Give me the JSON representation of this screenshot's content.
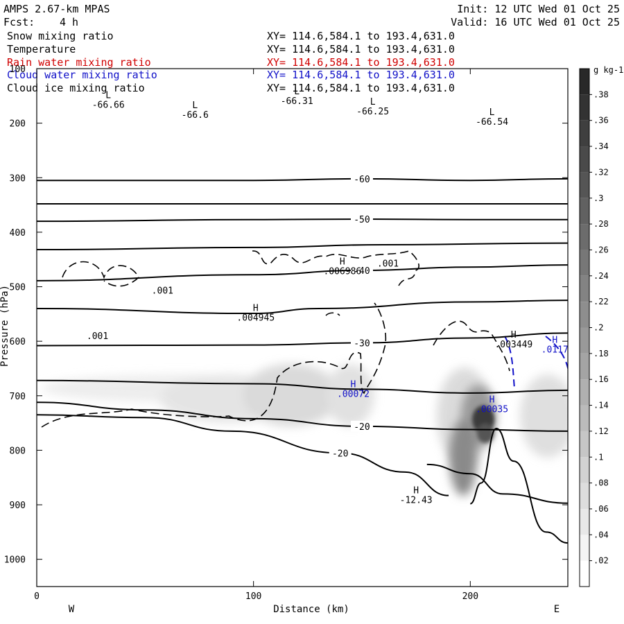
{
  "header": {
    "model": "AMPS 2.67-km MPAS",
    "fcst_label": "Fcst:",
    "fcst_value": "4 h",
    "init": "Init: 12 UTC Wed 01 Oct 25",
    "valid": "Valid: 16 UTC Wed 01 Oct 25"
  },
  "layers": [
    {
      "name": "Snow mixing ratio",
      "xy": "XY= 114.6,584.1 to 193.4,631.0",
      "color": "#000000"
    },
    {
      "name": "Temperature",
      "xy": "XY= 114.6,584.1 to 193.4,631.0",
      "color": "#000000"
    },
    {
      "name": "Rain water mixing ratio",
      "xy": "XY= 114.6,584.1 to 193.4,631.0",
      "color": "#d00000"
    },
    {
      "name": "Cloud water mixing ratio",
      "xy": "XY= 114.6,584.1 to 193.4,631.0",
      "color": "#1010c8"
    },
    {
      "name": "Cloud ice mixing ratio",
      "xy": "XY= 114.6,584.1 to 193.4,631.0",
      "color": "#000000"
    }
  ],
  "chart_data": {
    "type": "contour cross-section",
    "xlabel": "Distance (km)",
    "ylabel": "Pressure (hPa)",
    "xlim": [
      0,
      245
    ],
    "ylim": [
      1050,
      100
    ],
    "y_scale": "linear",
    "x_ticks": [
      0,
      100,
      200
    ],
    "y_ticks": [
      100,
      200,
      300,
      400,
      500,
      600,
      700,
      800,
      900,
      1000
    ],
    "x_ends": {
      "left": "W",
      "right": "E"
    },
    "colorbar": {
      "units": "g kg-1",
      "levels": [
        0.02,
        0.04,
        0.06,
        0.08,
        0.1,
        0.12,
        0.14,
        0.16,
        0.18,
        0.2,
        0.22,
        0.24,
        0.26,
        0.28,
        0.3,
        0.32,
        0.34,
        0.36,
        0.38
      ],
      "tick_labels": [
        ".02",
        ".04",
        ".06",
        ".08",
        ".1",
        ".12",
        ".14",
        ".16",
        ".18",
        ".2",
        ".22",
        ".24",
        ".26",
        ".28",
        ".3",
        ".32",
        ".34",
        ".36",
        ".38"
      ]
    },
    "temperature_contours": [
      {
        "label": "-60",
        "points": [
          [
            0,
            305
          ],
          [
            100,
            305
          ],
          [
            150,
            302
          ],
          [
            200,
            305
          ],
          [
            245,
            302
          ]
        ]
      },
      {
        "label": "",
        "points": [
          [
            0,
            348
          ],
          [
            245,
            348
          ]
        ]
      },
      {
        "label": "-50",
        "points": [
          [
            0,
            380
          ],
          [
            100,
            377
          ],
          [
            150,
            376
          ],
          [
            200,
            377
          ],
          [
            245,
            377
          ]
        ]
      },
      {
        "label": "",
        "points": [
          [
            0,
            432
          ],
          [
            100,
            428
          ],
          [
            160,
            423
          ],
          [
            245,
            420
          ]
        ]
      },
      {
        "label": "-40",
        "points": [
          [
            0,
            489
          ],
          [
            100,
            478
          ],
          [
            150,
            470
          ],
          [
            200,
            464
          ],
          [
            245,
            460
          ]
        ]
      },
      {
        "label": "",
        "points": [
          [
            0,
            540
          ],
          [
            100,
            549
          ],
          [
            130,
            540
          ],
          [
            200,
            528
          ],
          [
            245,
            525
          ]
        ]
      },
      {
        "label": "-30",
        "points": [
          [
            0,
            608
          ],
          [
            100,
            607
          ],
          [
            150,
            603
          ],
          [
            200,
            594
          ],
          [
            245,
            585
          ]
        ]
      },
      {
        "label": "",
        "points": [
          [
            0,
            672
          ],
          [
            100,
            678
          ],
          [
            150,
            688
          ],
          [
            200,
            695
          ],
          [
            245,
            690
          ]
        ]
      },
      {
        "label": "-20",
        "points": [
          [
            0,
            712
          ],
          [
            50,
            726
          ],
          [
            100,
            742
          ],
          [
            150,
            756
          ],
          [
            200,
            762
          ],
          [
            245,
            765
          ]
        ]
      },
      {
        "label": "-20",
        "points": [
          [
            0,
            735
          ],
          [
            50,
            740
          ],
          [
            90,
            765
          ],
          [
            140,
            805
          ],
          [
            170,
            840
          ],
          [
            190,
            883
          ]
        ]
      },
      {
        "label": "",
        "points": [
          [
            180,
            826
          ],
          [
            200,
            843
          ],
          [
            215,
            880
          ],
          [
            245,
            897
          ]
        ]
      },
      {
        "label": "",
        "points": [
          [
            200,
            898
          ],
          [
            205,
            860
          ],
          [
            212,
            760
          ],
          [
            220,
            820
          ],
          [
            235,
            950
          ],
          [
            245,
            970
          ]
        ]
      }
    ],
    "annotations": [
      {
        "type": "L",
        "value": "-66.66",
        "x": 33,
        "p": 172,
        "layer": "Temperature"
      },
      {
        "type": "L",
        "value": "-66.6",
        "x": 73,
        "p": 190,
        "layer": "Temperature"
      },
      {
        "type": "L",
        "value": "-66.31",
        "x": 120,
        "p": 165,
        "layer": "Temperature"
      },
      {
        "type": "L",
        "value": "-66.25",
        "x": 155,
        "p": 184,
        "layer": "Temperature"
      },
      {
        "type": "L",
        "value": "-66.54",
        "x": 210,
        "p": 203,
        "layer": "Temperature"
      },
      {
        "type": "H",
        "value": ".006986",
        "x": 141,
        "p": 477,
        "layer": "Cloud ice mixing ratio"
      },
      {
        "type": "H",
        "value": ".004945",
        "x": 101,
        "p": 562,
        "layer": "Cloud ice mixing ratio"
      },
      {
        "type": "H",
        "value": ".003449",
        "x": 220,
        "p": 611,
        "layer": "Cloud ice mixing ratio"
      },
      {
        "type": "H",
        "value": "-12.43",
        "x": 175,
        "p": 897,
        "layer": "Temperature"
      },
      {
        "type": "H",
        "value": ".00072",
        "x": 146,
        "p": 702,
        "layer": "Cloud water mixing ratio"
      },
      {
        "type": "H",
        "value": ".00035",
        "x": 210,
        "p": 730,
        "layer": "Cloud water mixing ratio"
      },
      {
        "type": "H",
        "value": ".0117",
        "x": 239,
        "p": 621,
        "layer": "Cloud water mixing ratio"
      }
    ],
    "contour_labels": [
      {
        "value": ".001",
        "x": 162,
        "p": 463,
        "layer": "Cloud ice mixing ratio"
      },
      {
        "value": ".001",
        "x": 58,
        "p": 513,
        "layer": "Cloud ice mixing ratio"
      },
      {
        "value": ".001",
        "x": 28,
        "p": 596,
        "layer": "Cloud ice mixing ratio"
      }
    ]
  }
}
